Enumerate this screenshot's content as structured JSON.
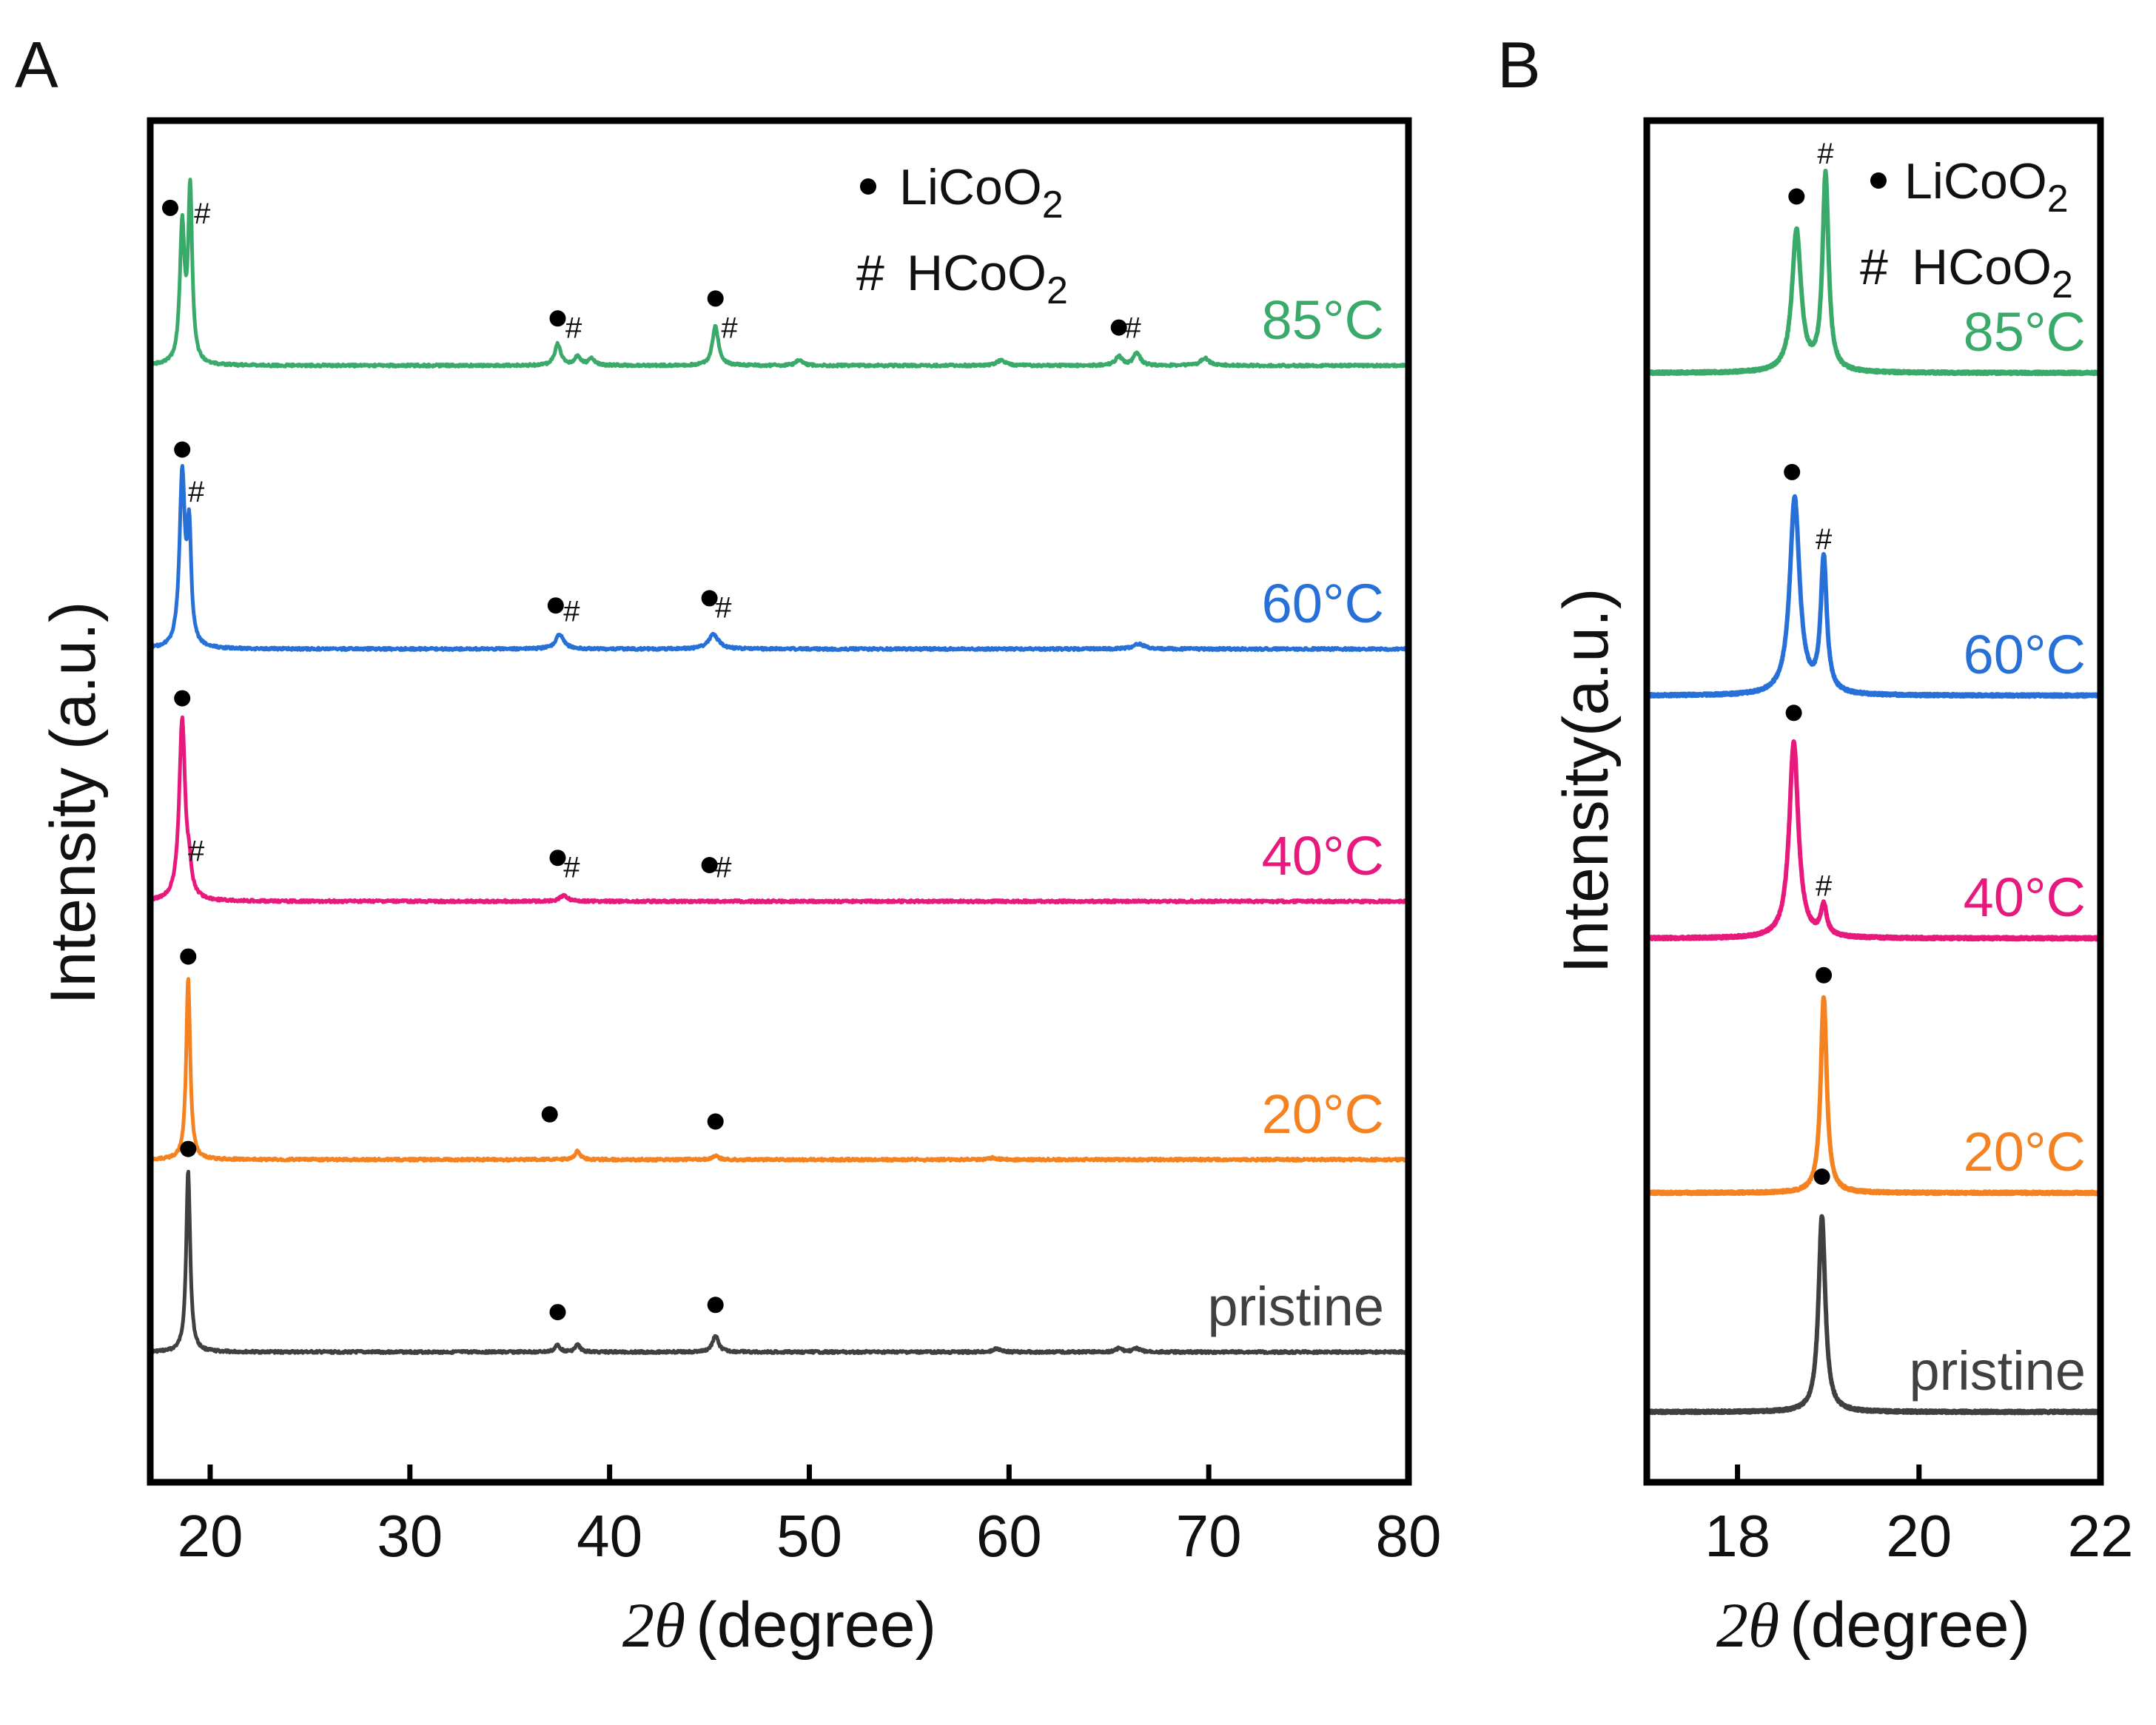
{
  "panels": [
    {
      "id": "A",
      "label": "A",
      "xlabel_symbol": "2θ",
      "xlabel_unit": "(degree)",
      "ylabel": "Intensity (a.u.)",
      "xlim": [
        17,
        80
      ],
      "xticks": [
        20,
        30,
        40,
        50,
        60,
        70,
        80
      ],
      "legend": [
        {
          "marker": "●",
          "name": "LiCoO",
          "sub": "2"
        },
        {
          "marker": "#",
          "name": "HCoO",
          "sub": "2"
        }
      ]
    },
    {
      "id": "B",
      "label": "B",
      "xlabel_symbol": "2θ",
      "xlabel_unit": "(degree)",
      "ylabel": "Intensity(a.u.)",
      "xlim": [
        17,
        22
      ],
      "xticks": [
        18,
        20,
        22
      ],
      "legend": [
        {
          "marker": "●",
          "name": "LiCoO",
          "sub": "2"
        },
        {
          "marker": "#",
          "name": "HCoO",
          "sub": "2"
        }
      ]
    }
  ],
  "chart_data": [
    {
      "type": "line",
      "panel": "A",
      "title": "",
      "xlabel": "2θ (degree)",
      "ylabel": "Intensity (a.u.)",
      "xlim": [
        17,
        80
      ],
      "series": [
        {
          "name": "pristine",
          "label": "pristine",
          "color": "#404040",
          "peaks": [
            {
              "x": 18.9,
              "h": 1.0,
              "w": 0.12
            },
            {
              "x": 37.4,
              "h": 0.04,
              "w": 0.15
            },
            {
              "x": 38.4,
              "h": 0.04,
              "w": 0.15
            },
            {
              "x": 45.3,
              "h": 0.09,
              "w": 0.18
            },
            {
              "x": 59.4,
              "h": 0.02,
              "w": 0.2
            },
            {
              "x": 65.5,
              "h": 0.02,
              "w": 0.2
            },
            {
              "x": 66.4,
              "h": 0.02,
              "w": 0.2
            }
          ],
          "markers": [
            {
              "type": "circle",
              "x": 18.9,
              "y": 1.12
            },
            {
              "type": "circle",
              "x": 37.4,
              "y": 0.22
            },
            {
              "type": "circle",
              "x": 45.3,
              "y": 0.26
            }
          ]
        },
        {
          "name": "20°C",
          "label": "20°C",
          "color": "#f58220",
          "peaks": [
            {
              "x": 18.9,
              "h": 1.0,
              "w": 0.12
            },
            {
              "x": 38.4,
              "h": 0.05,
              "w": 0.15
            },
            {
              "x": 45.3,
              "h": 0.02,
              "w": 0.18
            },
            {
              "x": 59.2,
              "h": 0.01,
              "w": 0.2
            }
          ],
          "markers": [
            {
              "type": "circle",
              "x": 18.9,
              "y": 1.12
            },
            {
              "type": "circle",
              "x": 37.0,
              "y": 0.25
            },
            {
              "type": "circle",
              "x": 45.3,
              "y": 0.21
            }
          ]
        },
        {
          "name": "40°C",
          "label": "40°C",
          "color": "#e8197d",
          "peaks": [
            {
              "x": 18.6,
              "h": 1.0,
              "w": 0.18
            },
            {
              "x": 18.95,
              "h": 0.12,
              "w": 0.12
            },
            {
              "x": 37.7,
              "h": 0.03,
              "w": 0.25
            }
          ],
          "markers": [
            {
              "type": "circle",
              "x": 18.6,
              "y": 1.12
            },
            {
              "type": "hash",
              "x": 19.3,
              "y": 0.28
            },
            {
              "type": "circle",
              "x": 37.4,
              "y": 0.24
            },
            {
              "type": "hash",
              "x": 38.1,
              "y": 0.19
            },
            {
              "type": "circle",
              "x": 45.0,
              "y": 0.2
            },
            {
              "type": "hash",
              "x": 45.7,
              "y": 0.19
            }
          ]
        },
        {
          "name": "60°C",
          "label": "60°C",
          "color": "#2670d8",
          "peaks": [
            {
              "x": 18.6,
              "h": 0.95,
              "w": 0.16
            },
            {
              "x": 18.95,
              "h": 0.6,
              "w": 0.12
            },
            {
              "x": 37.5,
              "h": 0.08,
              "w": 0.25
            },
            {
              "x": 45.2,
              "h": 0.08,
              "w": 0.3
            },
            {
              "x": 66.5,
              "h": 0.03,
              "w": 0.3
            }
          ],
          "markers": [
            {
              "type": "circle",
              "x": 18.6,
              "y": 1.1
            },
            {
              "type": "hash",
              "x": 19.3,
              "y": 0.87
            },
            {
              "type": "circle",
              "x": 37.3,
              "y": 0.24
            },
            {
              "type": "hash",
              "x": 38.1,
              "y": 0.21
            },
            {
              "type": "circle",
              "x": 45.0,
              "y": 0.28
            },
            {
              "type": "hash",
              "x": 45.7,
              "y": 0.23
            }
          ]
        },
        {
          "name": "85°C",
          "label": "85°C",
          "color": "#3aaa6a",
          "peaks": [
            {
              "x": 18.6,
              "h": 0.75,
              "w": 0.14
            },
            {
              "x": 19.0,
              "h": 0.95,
              "w": 0.12
            },
            {
              "x": 37.4,
              "h": 0.12,
              "w": 0.18
            },
            {
              "x": 38.4,
              "h": 0.05,
              "w": 0.18
            },
            {
              "x": 39.1,
              "h": 0.04,
              "w": 0.18
            },
            {
              "x": 45.3,
              "h": 0.22,
              "w": 0.18
            },
            {
              "x": 49.5,
              "h": 0.03,
              "w": 0.2
            },
            {
              "x": 59.6,
              "h": 0.03,
              "w": 0.25
            },
            {
              "x": 65.5,
              "h": 0.05,
              "w": 0.2
            },
            {
              "x": 66.4,
              "h": 0.07,
              "w": 0.2
            },
            {
              "x": 69.8,
              "h": 0.04,
              "w": 0.25
            }
          ],
          "markers": [
            {
              "type": "circle",
              "x": 18.0,
              "y": 0.87
            },
            {
              "type": "hash",
              "x": 19.6,
              "y": 0.84
            },
            {
              "type": "circle",
              "x": 37.4,
              "y": 0.26
            },
            {
              "type": "hash",
              "x": 38.2,
              "y": 0.21
            },
            {
              "type": "circle",
              "x": 45.3,
              "y": 0.37
            },
            {
              "type": "hash",
              "x": 46.0,
              "y": 0.21
            },
            {
              "type": "circle",
              "x": 65.5,
              "y": 0.21
            },
            {
              "type": "hash",
              "x": 66.2,
              "y": 0.21
            }
          ]
        }
      ]
    },
    {
      "type": "line",
      "panel": "B",
      "title": "",
      "xlabel": "2θ (degree)",
      "ylabel": "Intensity(a.u.)",
      "xlim": [
        17,
        22
      ],
      "series": [
        {
          "name": "pristine",
          "label": "pristine",
          "color": "#404040",
          "peaks": [
            {
              "x": 18.93,
              "h": 1.0,
              "w": 0.045
            }
          ],
          "markers": [
            {
              "type": "circle",
              "x": 18.93,
              "y": 1.2
            }
          ]
        },
        {
          "name": "20°C",
          "label": "20°C",
          "color": "#f58220",
          "peaks": [
            {
              "x": 18.95,
              "h": 1.0,
              "w": 0.04
            }
          ],
          "markers": [
            {
              "type": "circle",
              "x": 18.95,
              "y": 1.11
            }
          ]
        },
        {
          "name": "40°C",
          "label": "40°C",
          "color": "#e8197d",
          "peaks": [
            {
              "x": 18.62,
              "h": 1.0,
              "w": 0.06
            },
            {
              "x": 18.95,
              "h": 0.15,
              "w": 0.04
            }
          ],
          "markers": [
            {
              "type": "circle",
              "x": 18.62,
              "y": 1.15
            },
            {
              "type": "hash",
              "x": 18.95,
              "y": 0.27
            }
          ]
        },
        {
          "name": "60°C",
          "label": "60°C",
          "color": "#2670d8",
          "peaks": [
            {
              "x": 18.63,
              "h": 1.0,
              "w": 0.065
            },
            {
              "x": 18.95,
              "h": 0.68,
              "w": 0.04
            }
          ],
          "markers": [
            {
              "type": "circle",
              "x": 18.6,
              "y": 1.14
            },
            {
              "type": "hash",
              "x": 18.95,
              "y": 0.8
            }
          ]
        },
        {
          "name": "85°C",
          "label": "85°C",
          "color": "#3aaa6a",
          "peaks": [
            {
              "x": 18.65,
              "h": 0.72,
              "w": 0.06
            },
            {
              "x": 18.97,
              "h": 1.0,
              "w": 0.04
            }
          ],
          "markers": [
            {
              "type": "circle",
              "x": 18.65,
              "y": 0.9
            },
            {
              "type": "hash",
              "x": 18.97,
              "y": 1.12
            }
          ]
        }
      ]
    }
  ]
}
